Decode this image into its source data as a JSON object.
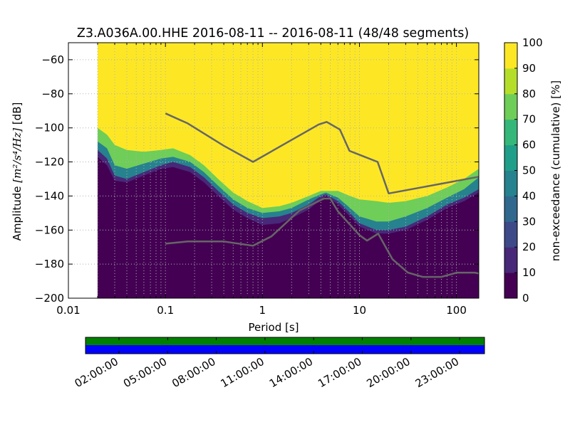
{
  "chart_data": {
    "type": "heatmap",
    "title": "Z3.A036A.00.HHE   2016-08-11 -- 2016-08-11  (48/48 segments)",
    "xlabel": "Period [s]",
    "ylabel_prefix": "Amplitude ",
    "ylabel_units": "[m²/s⁴/Hz]",
    "ylabel_suffix": " [dB]",
    "x_scale": "log",
    "xlim": [
      0.01,
      170
    ],
    "ylim": [
      -200,
      -50
    ],
    "x_ticks": [
      {
        "value": 0.01,
        "label": "0.01"
      },
      {
        "value": 0.1,
        "label": "0.1"
      },
      {
        "value": 1,
        "label": "1"
      },
      {
        "value": 10,
        "label": "10"
      },
      {
        "value": 100,
        "label": "100"
      }
    ],
    "y_ticks": [
      {
        "value": -60,
        "label": "−60"
      },
      {
        "value": -80,
        "label": "−80"
      },
      {
        "value": -100,
        "label": "−100"
      },
      {
        "value": -120,
        "label": "−120"
      },
      {
        "value": -140,
        "label": "−140"
      },
      {
        "value": -160,
        "label": "−160"
      },
      {
        "value": -180,
        "label": "−180"
      },
      {
        "value": -200,
        "label": "−200"
      }
    ],
    "grid": true,
    "data_period_start": 0.02,
    "colorbar": {
      "label": "non-exceedance (cumulative) [%]",
      "range": [
        0,
        100
      ],
      "ticks": [
        "0",
        "10",
        "20",
        "30",
        "40",
        "50",
        "60",
        "70",
        "80",
        "90",
        "100"
      ]
    },
    "contours": [
      {
        "percent": 0,
        "points": [
          [
            0.02,
            -117
          ],
          [
            0.025,
            -122
          ],
          [
            0.03,
            -131
          ],
          [
            0.04,
            -132
          ],
          [
            0.06,
            -128
          ],
          [
            0.09,
            -124
          ],
          [
            0.12,
            -123
          ],
          [
            0.18,
            -126
          ],
          [
            0.25,
            -132
          ],
          [
            0.35,
            -140
          ],
          [
            0.5,
            -148
          ],
          [
            0.7,
            -153
          ],
          [
            1,
            -157
          ],
          [
            1.5,
            -156
          ],
          [
            2,
            -153
          ],
          [
            3,
            -148
          ],
          [
            4,
            -142
          ],
          [
            4.5,
            -140
          ],
          [
            6,
            -145
          ],
          [
            8,
            -152
          ],
          [
            10,
            -158
          ],
          [
            15,
            -162
          ],
          [
            20,
            -162
          ],
          [
            30,
            -160
          ],
          [
            50,
            -154
          ],
          [
            80,
            -147
          ],
          [
            120,
            -143
          ],
          [
            170,
            -138
          ]
        ]
      },
      {
        "percent": 10,
        "points": [
          [
            0.02,
            -113
          ],
          [
            0.025,
            -118
          ],
          [
            0.03,
            -128
          ],
          [
            0.04,
            -130
          ],
          [
            0.06,
            -126
          ],
          [
            0.09,
            -122
          ],
          [
            0.12,
            -120
          ],
          [
            0.18,
            -123
          ],
          [
            0.25,
            -129
          ],
          [
            0.35,
            -137
          ],
          [
            0.5,
            -145
          ],
          [
            0.7,
            -150
          ],
          [
            1,
            -153
          ],
          [
            1.5,
            -152
          ],
          [
            2,
            -150
          ],
          [
            3,
            -145
          ],
          [
            4,
            -140
          ],
          [
            4.5,
            -139
          ],
          [
            6,
            -143
          ],
          [
            8,
            -150
          ],
          [
            10,
            -156
          ],
          [
            15,
            -160
          ],
          [
            20,
            -160
          ],
          [
            30,
            -158
          ],
          [
            50,
            -152
          ],
          [
            80,
            -145
          ],
          [
            120,
            -141
          ],
          [
            170,
            -136
          ]
        ]
      },
      {
        "percent": 40,
        "points": [
          [
            0.02,
            -108
          ],
          [
            0.025,
            -112
          ],
          [
            0.03,
            -122
          ],
          [
            0.04,
            -124
          ],
          [
            0.06,
            -121
          ],
          [
            0.09,
            -118
          ],
          [
            0.12,
            -117
          ],
          [
            0.18,
            -120
          ],
          [
            0.25,
            -126
          ],
          [
            0.35,
            -134
          ],
          [
            0.5,
            -142
          ],
          [
            0.7,
            -147
          ],
          [
            1,
            -150
          ],
          [
            1.5,
            -149
          ],
          [
            2,
            -147
          ],
          [
            3,
            -142
          ],
          [
            4,
            -139
          ],
          [
            4.5,
            -138
          ],
          [
            6,
            -141
          ],
          [
            8,
            -147
          ],
          [
            10,
            -152
          ],
          [
            15,
            -155
          ],
          [
            20,
            -155
          ],
          [
            30,
            -152
          ],
          [
            50,
            -147
          ],
          [
            80,
            -141
          ],
          [
            120,
            -136
          ],
          [
            170,
            -129
          ]
        ]
      },
      {
        "percent": 80,
        "points": [
          [
            0.02,
            -100
          ],
          [
            0.025,
            -104
          ],
          [
            0.03,
            -110
          ],
          [
            0.04,
            -113
          ],
          [
            0.06,
            -114
          ],
          [
            0.09,
            -113
          ],
          [
            0.12,
            -112
          ],
          [
            0.18,
            -116
          ],
          [
            0.25,
            -122
          ],
          [
            0.35,
            -130
          ],
          [
            0.5,
            -138
          ],
          [
            0.7,
            -143
          ],
          [
            1,
            -147
          ],
          [
            1.5,
            -146
          ],
          [
            2,
            -144
          ],
          [
            3,
            -140
          ],
          [
            4,
            -137
          ],
          [
            4.5,
            -137
          ],
          [
            6,
            -137
          ],
          [
            8,
            -140
          ],
          [
            10,
            -142
          ],
          [
            15,
            -143
          ],
          [
            20,
            -144
          ],
          [
            30,
            -143
          ],
          [
            50,
            -140
          ],
          [
            80,
            -135
          ],
          [
            120,
            -130
          ],
          [
            170,
            -124
          ]
        ]
      }
    ],
    "model_curves": [
      {
        "points": [
          [
            0.1,
            -91.5
          ],
          [
            0.17,
            -97.4
          ],
          [
            0.4,
            -110.5
          ],
          [
            0.8,
            -120
          ],
          [
            3.8,
            -98
          ],
          [
            4.6,
            -96.5
          ],
          [
            6.3,
            -101
          ],
          [
            7.9,
            -113.5
          ],
          [
            15.4,
            -120
          ],
          [
            20,
            -138.5
          ],
          [
            170,
            -128.7
          ]
        ]
      },
      {
        "points": [
          [
            0.1,
            -168
          ],
          [
            0.17,
            -166.7
          ],
          [
            0.4,
            -166.7
          ],
          [
            0.8,
            -169.2
          ],
          [
            1.24,
            -163.7
          ],
          [
            2.4,
            -148.6
          ],
          [
            4.3,
            -141.5
          ],
          [
            5,
            -141.5
          ],
          [
            6,
            -149
          ],
          [
            10,
            -163
          ],
          [
            12,
            -166.2
          ],
          [
            15.6,
            -162.1
          ],
          [
            21.9,
            -177.1
          ],
          [
            31.6,
            -185
          ],
          [
            45,
            -187.5
          ],
          [
            70,
            -187.5
          ],
          [
            101,
            -185
          ],
          [
            154,
            -185
          ],
          [
            170,
            -185.5
          ]
        ]
      }
    ],
    "timeline": {
      "ticks": [
        "02:00:00",
        "05:00:00",
        "08:00:00",
        "11:00:00",
        "14:00:00",
        "17:00:00",
        "20:00:00",
        "23:00:00"
      ],
      "top_color": "#008000",
      "bottom_color": "#0000ff"
    },
    "colors": {
      "model_curve": "#666666",
      "grid": "#b0b0b0",
      "viridis": [
        "#440154",
        "#482878",
        "#3e4989",
        "#31688e",
        "#26828e",
        "#1f9e89",
        "#35b779",
        "#6ece58",
        "#b5de2b",
        "#fde725"
      ]
    }
  }
}
